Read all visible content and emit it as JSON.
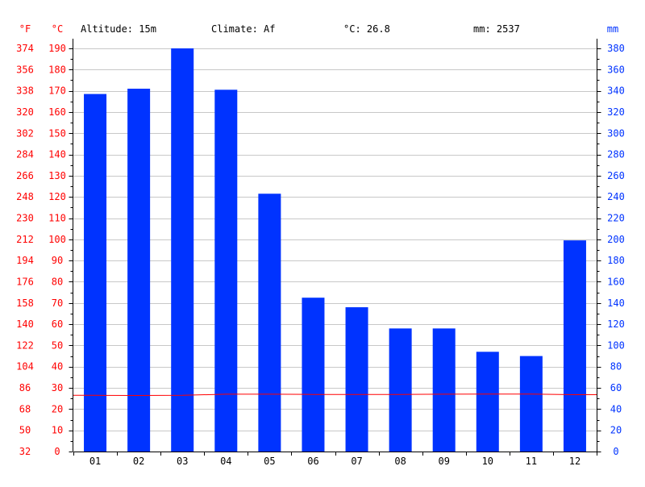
{
  "header": {
    "altitude": "Altitude: 15m",
    "climate": "Climate: Af",
    "temp_avg": "°C: 26.8",
    "precip_total": "mm: 2537"
  },
  "axis_units": {
    "fahrenheit": "°F",
    "celsius": "°C",
    "millimeters": "mm"
  },
  "colors": {
    "temperature": "#ff0000",
    "precipitation": "#0033ff",
    "grid": "#c8c8c8",
    "text": "#000000"
  },
  "chart_data": {
    "type": "bar",
    "categories": [
      "01",
      "02",
      "03",
      "04",
      "05",
      "06",
      "07",
      "08",
      "09",
      "10",
      "11",
      "12"
    ],
    "series": [
      {
        "type": "bar",
        "axis": "right",
        "values": [
          337,
          342,
          380,
          341,
          243,
          145,
          136,
          116,
          116,
          94,
          90,
          199
        ]
      },
      {
        "type": "line",
        "axis": "left",
        "values": [
          26.5,
          26.4,
          26.5,
          27.0,
          27.0,
          26.9,
          26.9,
          26.9,
          27.0,
          27.1,
          27.1,
          26.8
        ]
      }
    ],
    "y_left_celsius": {
      "range": [
        0,
        190
      ],
      "ticks": [
        0,
        10,
        20,
        30,
        40,
        50,
        60,
        70,
        80,
        90,
        100,
        110,
        120,
        130,
        140,
        150,
        160,
        170,
        180,
        190
      ]
    },
    "y_left_fahrenheit": {
      "ticks": [
        "32",
        "50",
        "68",
        "86",
        "104",
        "122",
        "140",
        "158",
        "176",
        "194",
        "212",
        "230",
        "248",
        "266",
        "284",
        "302",
        "320",
        "338",
        "356",
        "374"
      ]
    },
    "y_right_mm": {
      "range": [
        0,
        380
      ],
      "ticks": [
        0,
        20,
        40,
        60,
        80,
        100,
        120,
        140,
        160,
        180,
        200,
        220,
        240,
        260,
        280,
        300,
        320,
        340,
        360,
        380
      ]
    },
    "grid": true
  }
}
